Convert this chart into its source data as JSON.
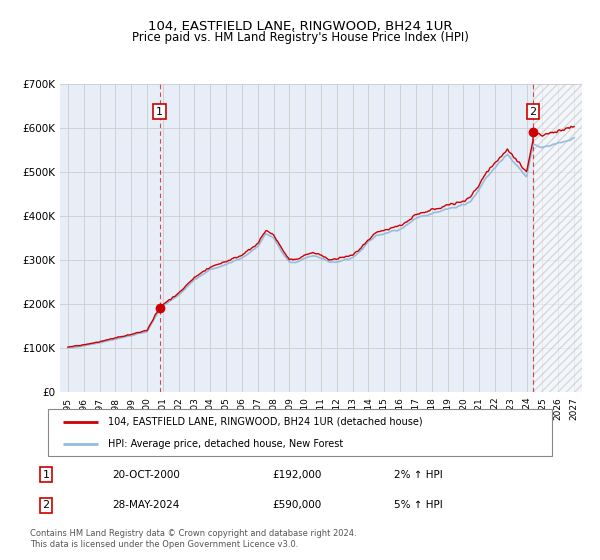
{
  "title": "104, EASTFIELD LANE, RINGWOOD, BH24 1UR",
  "subtitle": "Price paid vs. HM Land Registry's House Price Index (HPI)",
  "ylim": [
    0,
    700000
  ],
  "yticks": [
    0,
    100000,
    200000,
    300000,
    400000,
    500000,
    600000,
    700000
  ],
  "ytick_labels": [
    "£0",
    "£100K",
    "£200K",
    "£300K",
    "£400K",
    "£500K",
    "£600K",
    "£700K"
  ],
  "xlim_start": 1994.5,
  "xlim_end": 2027.5,
  "xtick_years": [
    1995,
    1996,
    1997,
    1998,
    1999,
    2000,
    2001,
    2002,
    2003,
    2004,
    2005,
    2006,
    2007,
    2008,
    2009,
    2010,
    2011,
    2012,
    2013,
    2014,
    2015,
    2016,
    2017,
    2018,
    2019,
    2020,
    2021,
    2022,
    2023,
    2024,
    2025,
    2026,
    2027
  ],
  "sale1_x": 2000.8,
  "sale1_y": 192000,
  "sale2_x": 2024.4,
  "sale2_y": 590000,
  "sale1_date": "20-OCT-2000",
  "sale1_price": "£192,000",
  "sale1_hpi": "2% ↑ HPI",
  "sale2_date": "28-MAY-2024",
  "sale2_price": "£590,000",
  "sale2_hpi": "5% ↑ HPI",
  "red_line_color": "#cc0000",
  "blue_line_color": "#99bbdd",
  "hatch_start": 2024.4,
  "legend_line1": "104, EASTFIELD LANE, RINGWOOD, BH24 1UR (detached house)",
  "legend_line2": "HPI: Average price, detached house, New Forest",
  "footnote1": "Contains HM Land Registry data © Crown copyright and database right 2024.",
  "footnote2": "This data is licensed under the Open Government Licence v3.0.",
  "background_color": "#ffffff",
  "grid_color": "#cccccc",
  "plot_bg_color": "#e8eef8"
}
